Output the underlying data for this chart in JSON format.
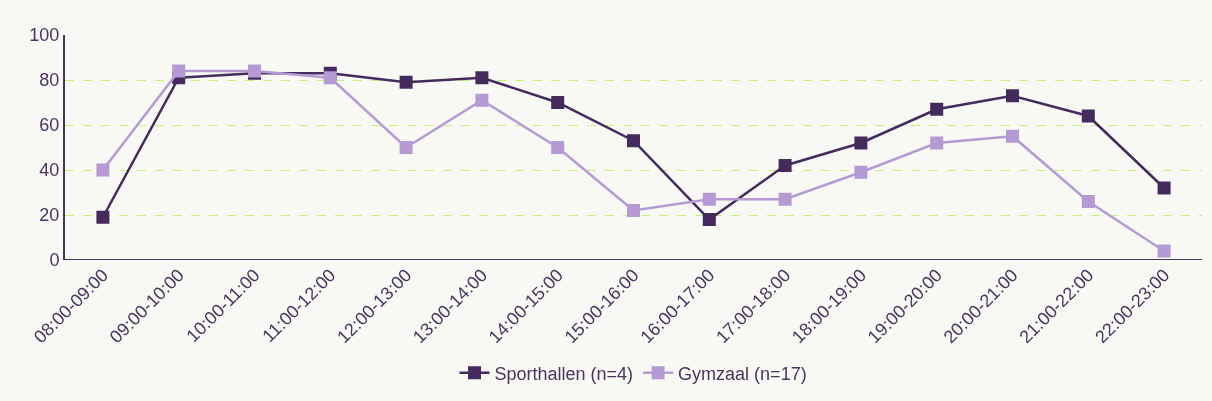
{
  "chart_data": {
    "type": "line",
    "categories": [
      "08:00-09:00",
      "09:00-10:00",
      "10:00-11:00",
      "11:00-12:00",
      "12:00-13:00",
      "13:00-14:00",
      "14:00-15:00",
      "15:00-16:00",
      "16:00-17:00",
      "17:00-18:00",
      "18:00-19:00",
      "19:00-20:00",
      "20:00-21:00",
      "21:00-22:00",
      "22:00-23:00"
    ],
    "series": [
      {
        "name": "Sporthallen (n=4)",
        "color": "#452a5e",
        "values": [
          19,
          81,
          83,
          83,
          79,
          81,
          70,
          53,
          18,
          42,
          52,
          67,
          73,
          64,
          32
        ]
      },
      {
        "name": "Gymzaal (n=17)",
        "color": "#b59ad3",
        "values": [
          40,
          84,
          84,
          81,
          50,
          71,
          50,
          22,
          27,
          27,
          39,
          52,
          55,
          26,
          4
        ]
      }
    ],
    "ylim": [
      0,
      100
    ],
    "yticks": [
      0,
      20,
      40,
      60,
      80,
      100
    ],
    "grid": "y",
    "legend": "bottom",
    "marker": "square",
    "line_style": "solid"
  }
}
